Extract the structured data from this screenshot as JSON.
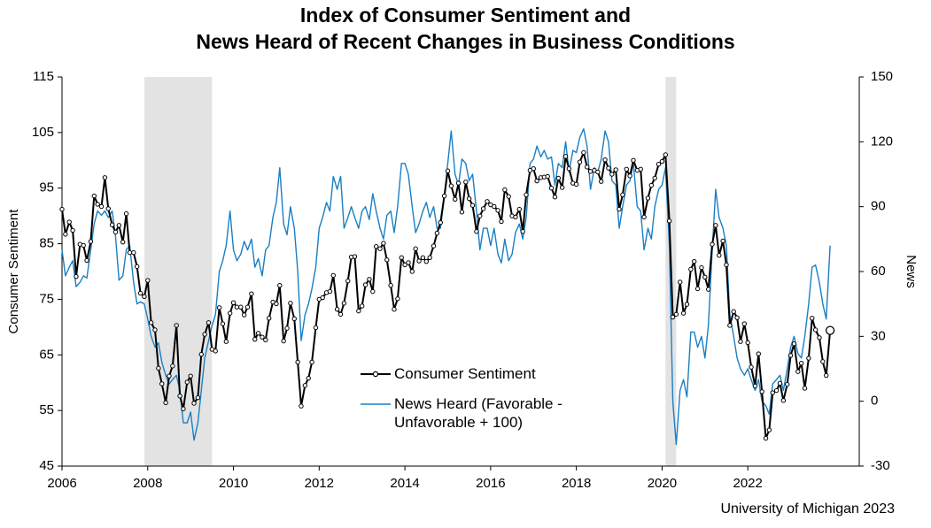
{
  "chart_data": {
    "type": "line",
    "title": [
      "Index of Consumer Sentiment and",
      "News Heard of Recent Changes in Business Conditions"
    ],
    "ylabel": "Consumer Sentiment",
    "y2label": "News",
    "source": "University of Michigan 2023",
    "xlim": [
      2006,
      2024.6
    ],
    "xticks": [
      2006,
      2008,
      2010,
      2012,
      2014,
      2016,
      2018,
      2020,
      2022
    ],
    "ylim": [
      45,
      115
    ],
    "yticks": [
      45,
      55,
      65,
      75,
      85,
      95,
      105,
      115
    ],
    "y2lim": [
      -30,
      150
    ],
    "y2ticks": [
      -30,
      0,
      30,
      60,
      90,
      120,
      150
    ],
    "shaded_periods": [
      [
        2007.92,
        2009.5
      ],
      [
        2020.08,
        2020.33
      ]
    ],
    "x": [
      2006,
      2006.08,
      2006.17,
      2006.25,
      2006.33,
      2006.42,
      2006.5,
      2006.58,
      2006.67,
      2006.75,
      2006.83,
      2006.92,
      2007,
      2007.08,
      2007.17,
      2007.25,
      2007.33,
      2007.42,
      2007.5,
      2007.58,
      2007.67,
      2007.75,
      2007.83,
      2007.92,
      2008,
      2008.08,
      2008.17,
      2008.25,
      2008.33,
      2008.42,
      2008.5,
      2008.58,
      2008.67,
      2008.75,
      2008.83,
      2008.92,
      2009,
      2009.08,
      2009.17,
      2009.25,
      2009.33,
      2009.42,
      2009.5,
      2009.58,
      2009.67,
      2009.75,
      2009.83,
      2009.92,
      2010,
      2010.08,
      2010.17,
      2010.25,
      2010.33,
      2010.42,
      2010.5,
      2010.58,
      2010.67,
      2010.75,
      2010.83,
      2010.92,
      2011,
      2011.08,
      2011.17,
      2011.25,
      2011.33,
      2011.42,
      2011.5,
      2011.58,
      2011.67,
      2011.75,
      2011.83,
      2011.92,
      2012,
      2012.08,
      2012.17,
      2012.25,
      2012.33,
      2012.42,
      2012.5,
      2012.58,
      2012.67,
      2012.75,
      2012.83,
      2012.92,
      2013,
      2013.08,
      2013.17,
      2013.25,
      2013.33,
      2013.42,
      2013.5,
      2013.58,
      2013.67,
      2013.75,
      2013.83,
      2013.92,
      2014,
      2014.08,
      2014.17,
      2014.25,
      2014.33,
      2014.42,
      2014.5,
      2014.58,
      2014.67,
      2014.75,
      2014.83,
      2014.92,
      2015,
      2015.08,
      2015.17,
      2015.25,
      2015.33,
      2015.42,
      2015.5,
      2015.58,
      2015.67,
      2015.75,
      2015.83,
      2015.92,
      2016,
      2016.08,
      2016.17,
      2016.25,
      2016.33,
      2016.42,
      2016.5,
      2016.58,
      2016.67,
      2016.75,
      2016.83,
      2016.92,
      2017,
      2017.08,
      2017.17,
      2017.25,
      2017.33,
      2017.42,
      2017.5,
      2017.58,
      2017.67,
      2017.75,
      2017.83,
      2017.92,
      2018,
      2018.08,
      2018.17,
      2018.25,
      2018.33,
      2018.42,
      2018.5,
      2018.58,
      2018.67,
      2018.75,
      2018.83,
      2018.92,
      2019,
      2019.08,
      2019.17,
      2019.25,
      2019.33,
      2019.42,
      2019.5,
      2019.58,
      2019.67,
      2019.75,
      2019.83,
      2019.92,
      2020,
      2020.08,
      2020.17,
      2020.25,
      2020.33,
      2020.42,
      2020.5,
      2020.58,
      2020.67,
      2020.75,
      2020.83,
      2020.92,
      2021,
      2021.08,
      2021.17,
      2021.25,
      2021.33,
      2021.42,
      2021.5,
      2021.58,
      2021.67,
      2021.75,
      2021.83,
      2021.92,
      2022,
      2022.08,
      2022.17,
      2022.25,
      2022.33,
      2022.42,
      2022.5,
      2022.58,
      2022.67,
      2022.75,
      2022.83,
      2022.92,
      2023,
      2023.08,
      2023.17,
      2023.25,
      2023.33,
      2023.42,
      2023.5,
      2023.58,
      2023.67,
      2023.75,
      2023.83,
      2023.92
    ],
    "series": [
      {
        "name": "Consumer Sentiment",
        "color": "#000000",
        "markers": true,
        "values": [
          91.2,
          86.7,
          88.9,
          87.4,
          79.1,
          84.9,
          84.7,
          82.0,
          85.4,
          93.6,
          92.1,
          91.7,
          96.9,
          91.3,
          88.4,
          87.1,
          88.3,
          85.3,
          90.4,
          83.4,
          83.4,
          80.9,
          76.1,
          75.5,
          78.4,
          70.8,
          69.5,
          62.6,
          59.8,
          56.4,
          61.2,
          63.0,
          70.3,
          57.6,
          55.3,
          60.1,
          61.2,
          56.3,
          57.3,
          65.1,
          68.7,
          70.8,
          66.0,
          65.7,
          73.5,
          70.6,
          67.4,
          72.5,
          74.4,
          73.6,
          73.6,
          72.2,
          73.6,
          76.0,
          67.8,
          68.9,
          68.2,
          67.7,
          71.6,
          74.5,
          74.2,
          77.5,
          67.5,
          69.8,
          74.3,
          71.5,
          63.7,
          55.8,
          59.5,
          60.8,
          63.7,
          69.9,
          75.0,
          75.3,
          76.2,
          76.4,
          79.3,
          73.2,
          72.3,
          74.3,
          78.3,
          82.6,
          82.7,
          72.9,
          73.8,
          77.6,
          78.6,
          76.4,
          84.5,
          84.1,
          85.1,
          82.1,
          77.5,
          73.2,
          75.1,
          82.5,
          81.2,
          81.6,
          80.0,
          84.1,
          81.9,
          82.5,
          81.8,
          82.5,
          84.6,
          86.9,
          88.8,
          93.6,
          98.1,
          95.4,
          93.0,
          95.9,
          90.7,
          96.1,
          93.1,
          91.9,
          87.2,
          90.0,
          91.3,
          92.6,
          92.0,
          91.7,
          91.0,
          89.0,
          94.7,
          93.5,
          90.0,
          89.8,
          91.2,
          87.2,
          93.8,
          98.2,
          98.5,
          96.3,
          96.9,
          97.0,
          97.1,
          95.0,
          93.4,
          96.8,
          95.1,
          100.7,
          98.5,
          95.9,
          95.7,
          99.7,
          101.4,
          98.8,
          98.0,
          98.2,
          97.9,
          96.2,
          100.1,
          98.6,
          97.5,
          98.3,
          91.2,
          93.8,
          98.4,
          97.2,
          100.0,
          98.2,
          98.4,
          89.8,
          93.2,
          95.5,
          96.8,
          99.3,
          99.8,
          101.0,
          89.1,
          71.8,
          72.3,
          78.1,
          72.5,
          74.1,
          80.4,
          81.8,
          76.9,
          80.7,
          79.0,
          76.8,
          84.9,
          88.3,
          82.9,
          85.5,
          81.2,
          70.3,
          72.8,
          71.7,
          67.4,
          70.6,
          67.2,
          62.8,
          59.4,
          65.2,
          58.4,
          50.0,
          51.5,
          58.2,
          58.6,
          59.9,
          56.8,
          59.7,
          64.9,
          67.0,
          62.0,
          63.5,
          59.0,
          64.4,
          71.6,
          69.5,
          68.1,
          63.8,
          61.3,
          69.4
        ]
      },
      {
        "name": "News Heard (Favorable - Unfavorable + 100)",
        "color": "#1a7fc4",
        "axis": "y2",
        "markers": false,
        "values": [
          70,
          58,
          62,
          65,
          53,
          55,
          58,
          57,
          70,
          82,
          88,
          86,
          88,
          85,
          88,
          76,
          56,
          58,
          70,
          72,
          55,
          45,
          46,
          45,
          38,
          30,
          25,
          27,
          18,
          12,
          8,
          10,
          12,
          5,
          -10,
          -10,
          -5,
          -18,
          -10,
          5,
          20,
          28,
          35,
          40,
          60,
          65,
          72,
          88,
          70,
          65,
          68,
          74,
          70,
          75,
          62,
          66,
          58,
          70,
          72,
          85,
          92,
          108,
          82,
          77,
          90,
          80,
          60,
          28,
          40,
          45,
          52,
          62,
          80,
          85,
          92,
          88,
          104,
          98,
          104,
          80,
          85,
          90,
          85,
          80,
          88,
          90,
          84,
          96,
          88,
          80,
          75,
          86,
          88,
          78,
          90,
          110,
          110,
          105,
          90,
          78,
          82,
          88,
          92,
          85,
          90,
          80,
          80,
          95,
          110,
          125,
          105,
          100,
          112,
          110,
          102,
          105,
          88,
          70,
          80,
          80,
          72,
          80,
          68,
          64,
          75,
          65,
          68,
          78,
          82,
          75,
          85,
          110,
          112,
          118,
          113,
          116,
          112,
          113,
          100,
          110,
          108,
          120,
          106,
          116,
          115,
          122,
          126,
          118,
          98,
          108,
          106,
          112,
          125,
          120,
          102,
          100,
          80,
          90,
          100,
          102,
          110,
          90,
          88,
          70,
          80,
          75,
          90,
          98,
          100,
          108,
          72,
          0,
          -20,
          5,
          10,
          2,
          32,
          32,
          25,
          30,
          20,
          35,
          70,
          98,
          85,
          80,
          72,
          40,
          30,
          20,
          15,
          12,
          15,
          10,
          5,
          10,
          0,
          -2,
          -6,
          8,
          10,
          12,
          5,
          15,
          25,
          30,
          22,
          20,
          30,
          45,
          62,
          63,
          55,
          45,
          38,
          72
        ]
      }
    ]
  }
}
